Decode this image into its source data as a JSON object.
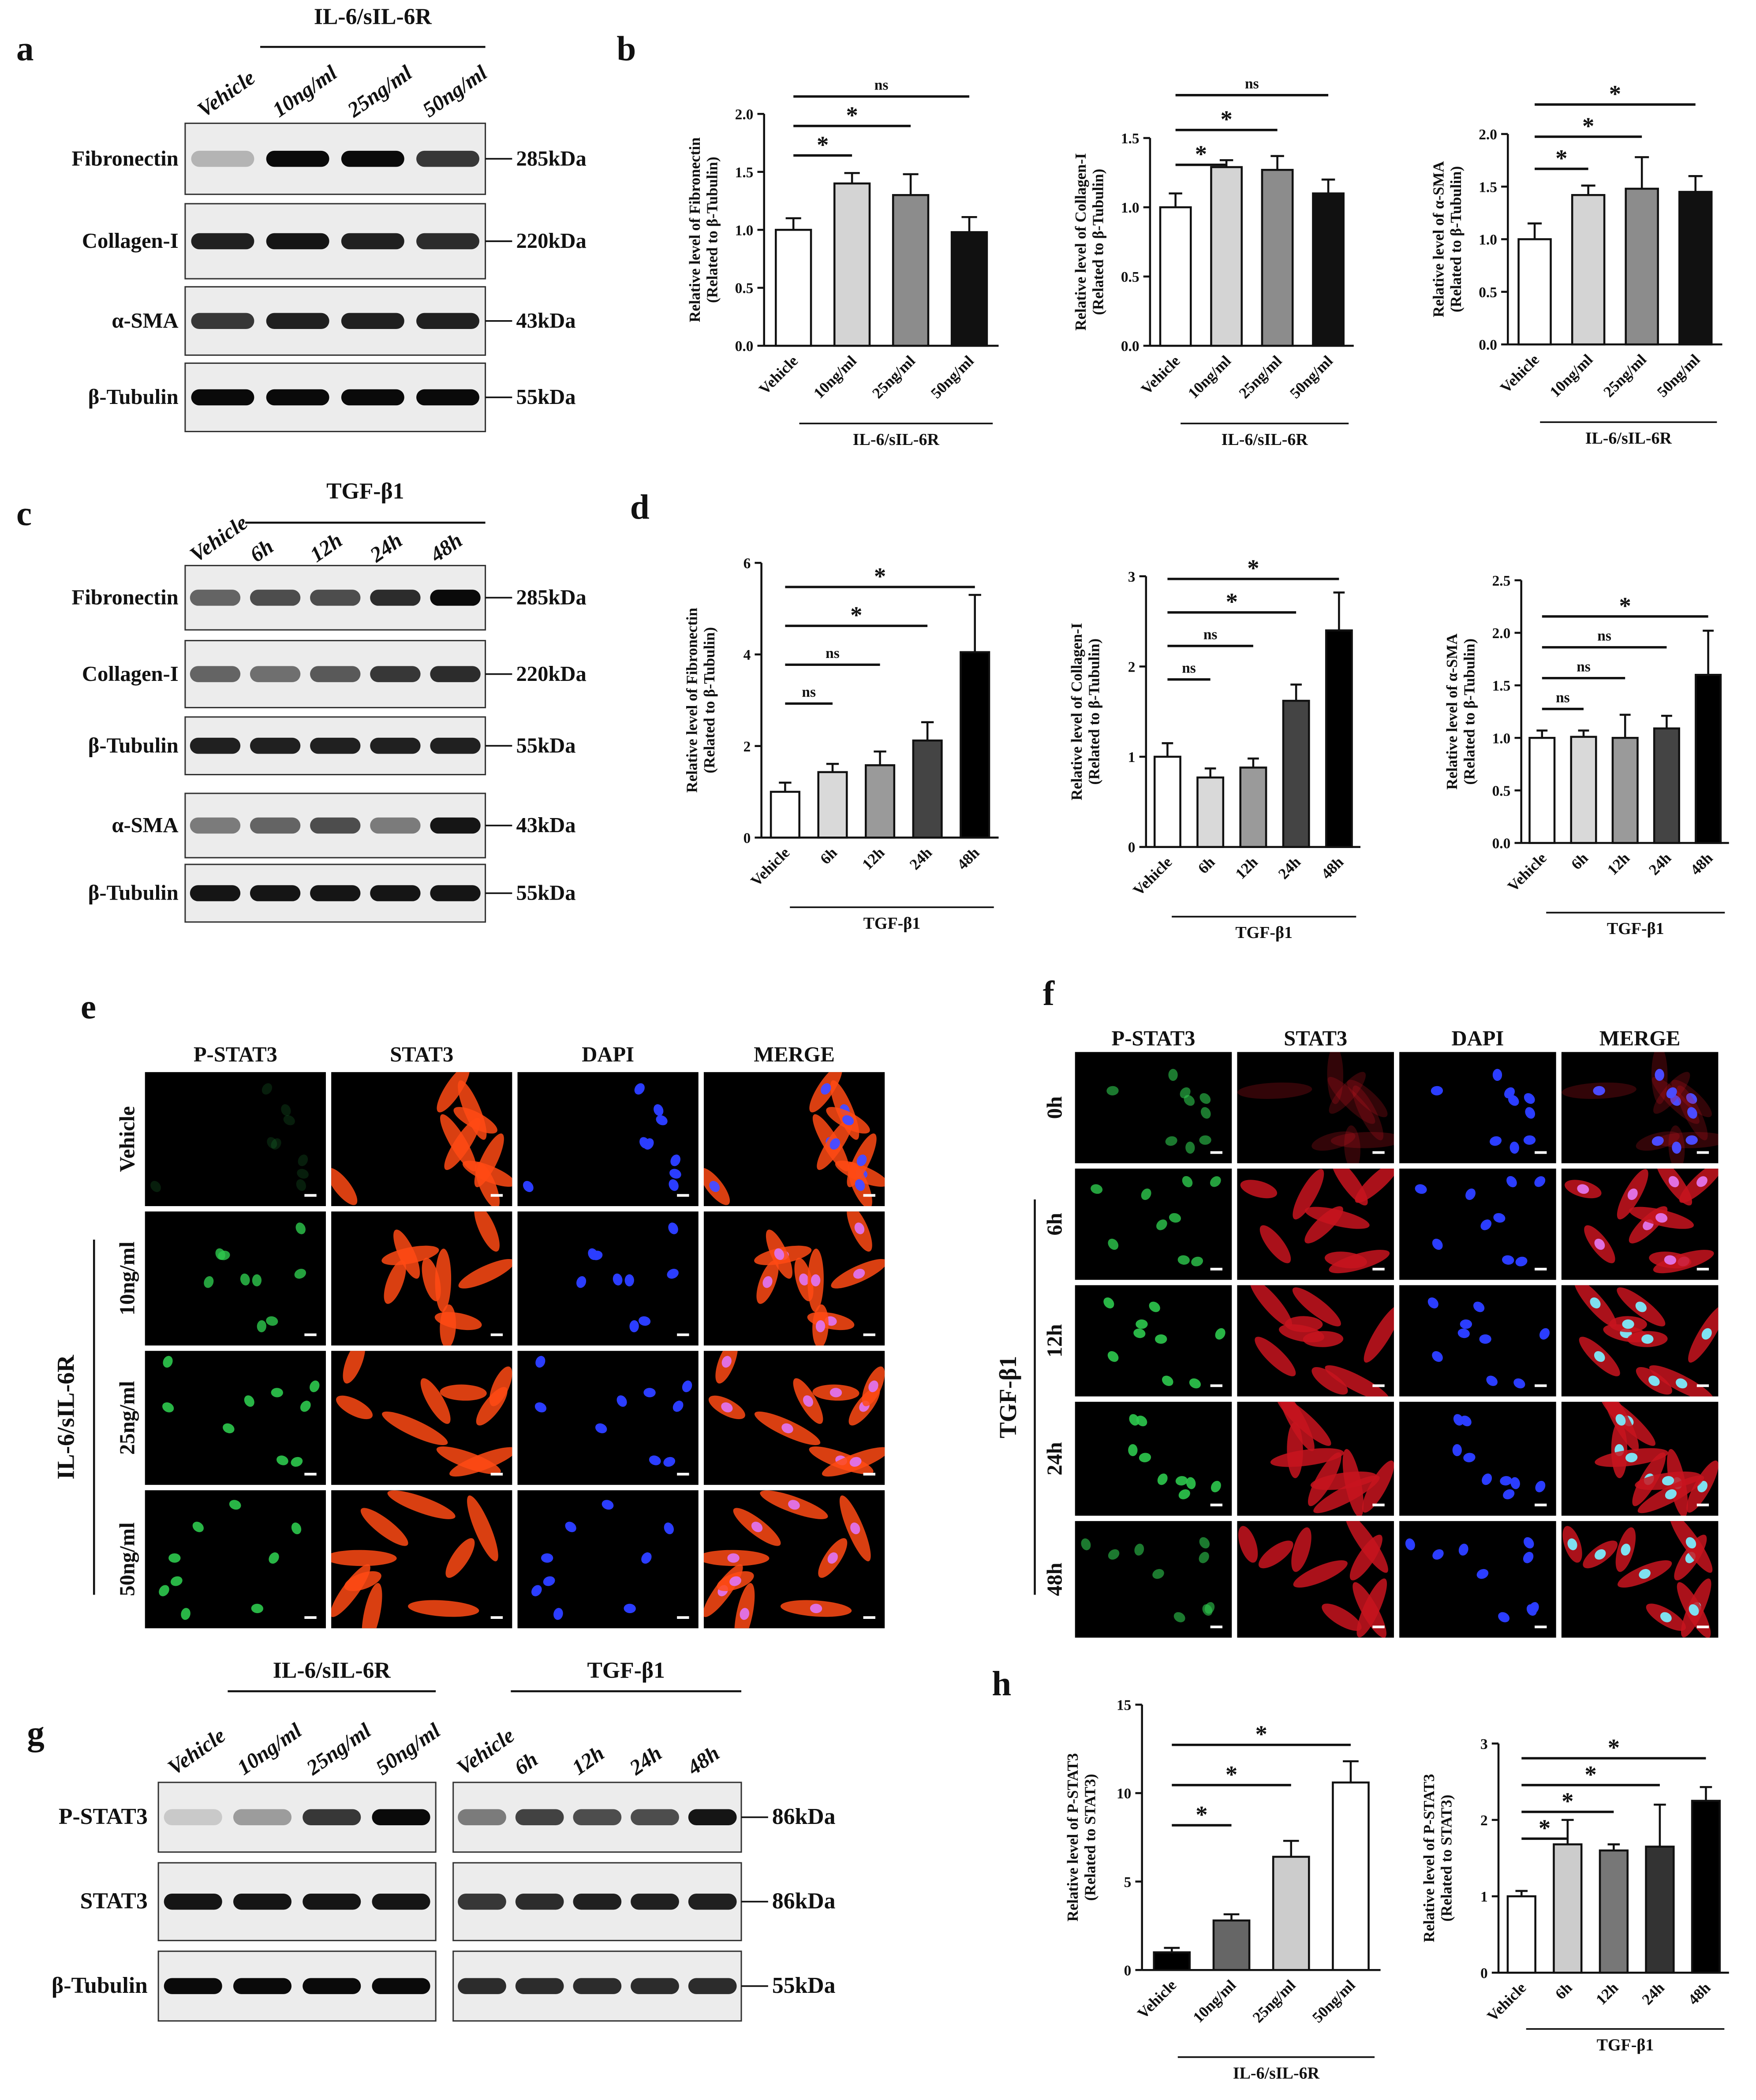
{
  "panel_labels": [
    "a",
    "b",
    "c",
    "d",
    "e",
    "f",
    "g",
    "h"
  ],
  "blots": [
    {
      "header": "IL-6/sIL-6R",
      "lanes": [
        "Vehicle",
        "10ng/ml",
        "25ng/ml",
        "50ng/ml"
      ],
      "rows": [
        {
          "protein": "Fibronectin",
          "size": "285kDa"
        },
        {
          "protein": "Collagen-I",
          "size": "220kDa"
        },
        {
          "protein": "α-SMA",
          "size": "43kDa"
        },
        {
          "protein": "β-Tubulin",
          "size": "55kDa"
        }
      ]
    },
    {
      "header": "TGF-β1",
      "lanes": [
        "Vehicle",
        "6h",
        "12h",
        "24h",
        "48h"
      ],
      "rows": [
        {
          "protein": "Fibronectin",
          "size": "285kDa"
        },
        {
          "protein": "Collagen-I",
          "size": "220kDa"
        },
        {
          "protein": "β-Tubulin",
          "size": "55kDa"
        },
        {
          "protein": "α-SMA",
          "size": "43kDa"
        },
        {
          "protein": "β-Tubulin",
          "size": "55kDa"
        }
      ]
    },
    {
      "header": "IL-6/sIL-6R",
      "lanes": [
        "Vehicle",
        "10ng/ml",
        "25ng/ml",
        "50ng/ml"
      ],
      "rows": [
        {
          "protein": "P-STAT3"
        },
        {
          "protein": "STAT3"
        },
        {
          "protein": "β-Tubulin"
        }
      ]
    },
    {
      "header": "TGF-β1",
      "lanes": [
        "Vehicle",
        "6h",
        "12h",
        "24h",
        "48h"
      ],
      "rows": [
        {
          "size": "86kDa"
        },
        {
          "size": "86kDa"
        },
        {
          "size": "55kDa"
        }
      ]
    }
  ],
  "micrographs": [
    {
      "columns": [
        "P-STAT3",
        "STAT3",
        "DAPI",
        "MERGE"
      ],
      "rows": [
        "Vehicle",
        "10ng/ml",
        "25ng/ml",
        "50ng/ml"
      ],
      "group": "IL-6/sIL-6R"
    },
    {
      "columns": [
        "P-STAT3",
        "STAT3",
        "DAPI",
        "MERGE"
      ],
      "rows": [
        "0h",
        "6h",
        "12h",
        "24h",
        "48h"
      ],
      "group": "TGF-β1"
    }
  ],
  "chart_data": [
    {
      "type": "bar",
      "y_label": [
        "Relative level of Fibronectin",
        "(Related to β-Tubulin)"
      ],
      "categories": [
        "Vehicle",
        "10ng/ml",
        "25ng/ml",
        "50ng/ml"
      ],
      "values": [
        1.0,
        1.4,
        1.3,
        0.98
      ],
      "errors": [
        0.1,
        0.09,
        0.18,
        0.13
      ],
      "colors": [
        "#ffffff",
        "#d4d4d4",
        "#8c8c8c",
        "#111111"
      ],
      "ylim": [
        0,
        2
      ],
      "yticks": [
        {
          "value": 0,
          "label": "0.0"
        },
        {
          "value": 0.5,
          "label": "0.5"
        },
        {
          "value": 1,
          "label": "1.0"
        },
        {
          "value": 1.5,
          "label": "1.5"
        },
        {
          "value": 2,
          "label": "2.0"
        }
      ],
      "group_label": "IL-6/sIL-6R",
      "brackets": [
        {
          "to": "10ng/ml",
          "label": "*"
        },
        {
          "to": "25ng/ml",
          "label": "*"
        },
        {
          "to": "50ng/ml",
          "label": "ns"
        }
      ]
    },
    {
      "type": "bar",
      "y_label": [
        "Relative level of Collagen-I",
        "(Related to β-Tubulin)"
      ],
      "categories": [
        "Vehicle",
        "10ng/ml",
        "25ng/ml",
        "50ng/ml"
      ],
      "values": [
        1.0,
        1.29,
        1.27,
        1.1
      ],
      "errors": [
        0.1,
        0.05,
        0.1,
        0.1
      ],
      "colors": [
        "#ffffff",
        "#d4d4d4",
        "#8c8c8c",
        "#111111"
      ],
      "ylim": [
        0,
        1.5
      ],
      "yticks": [
        {
          "value": 0,
          "label": "0.0"
        },
        {
          "value": 0.5,
          "label": "0.5"
        },
        {
          "value": 1,
          "label": "1.0"
        },
        {
          "value": 1.5,
          "label": "1.5"
        }
      ],
      "group_label": "IL-6/sIL-6R",
      "brackets": [
        {
          "to": "10ng/ml",
          "label": "*"
        },
        {
          "to": "25ng/ml",
          "label": "*"
        },
        {
          "to": "50ng/ml",
          "label": "ns"
        }
      ]
    },
    {
      "type": "bar",
      "y_label": [
        "Relative level of α-SMA",
        "(Related to β-Tubulin)"
      ],
      "categories": [
        "Vehicle",
        "10ng/ml",
        "25ng/ml",
        "50ng/ml"
      ],
      "values": [
        1.0,
        1.42,
        1.48,
        1.45
      ],
      "errors": [
        0.15,
        0.09,
        0.3,
        0.15
      ],
      "colors": [
        "#ffffff",
        "#d4d4d4",
        "#8c8c8c",
        "#111111"
      ],
      "ylim": [
        0,
        2
      ],
      "yticks": [
        {
          "value": 0,
          "label": "0.0"
        },
        {
          "value": 0.5,
          "label": "0.5"
        },
        {
          "value": 1,
          "label": "1.0"
        },
        {
          "value": 1.5,
          "label": "1.5"
        },
        {
          "value": 2,
          "label": "2.0"
        }
      ],
      "group_label": "IL-6/sIL-6R",
      "brackets": [
        {
          "to": "10ng/ml",
          "label": "*"
        },
        {
          "to": "25ng/ml",
          "label": "*"
        },
        {
          "to": "50ng/ml",
          "label": "*"
        }
      ]
    },
    {
      "type": "bar",
      "y_label": [
        "Relative level of Fibronectin",
        "(Related to β-Tubulin)"
      ],
      "categories": [
        "Vehicle",
        "6h",
        "12h",
        "24h",
        "48h"
      ],
      "values": [
        1.0,
        1.43,
        1.58,
        2.12,
        4.05
      ],
      "errors": [
        0.2,
        0.18,
        0.3,
        0.4,
        1.25
      ],
      "colors": [
        "#ffffff",
        "#d9d9d9",
        "#9a9a9a",
        "#444444",
        "#000000"
      ],
      "ylim": [
        0,
        6
      ],
      "yticks": [
        0,
        2,
        4,
        6
      ],
      "group_label": "TGF-β1",
      "brackets": [
        {
          "to": "6h",
          "label": "ns"
        },
        {
          "to": "12h",
          "label": "ns"
        },
        {
          "to": "24h",
          "label": "*"
        },
        {
          "to": "48h",
          "label": "*"
        }
      ]
    },
    {
      "type": "bar",
      "y_label": [
        "Relative level of Collagen-I",
        "(Related to β-Tubulin)"
      ],
      "categories": [
        "Vehicle",
        "6h",
        "12h",
        "24h",
        "48h"
      ],
      "values": [
        1.0,
        0.77,
        0.88,
        1.62,
        2.4
      ],
      "errors": [
        0.15,
        0.1,
        0.1,
        0.18,
        0.42
      ],
      "colors": [
        "#ffffff",
        "#d9d9d9",
        "#9a9a9a",
        "#444444",
        "#000000"
      ],
      "ylim": [
        0,
        3
      ],
      "yticks": [
        0,
        1,
        2,
        3
      ],
      "group_label": "TGF-β1",
      "brackets": [
        {
          "to": "6h",
          "label": "ns"
        },
        {
          "to": "12h",
          "label": "ns"
        },
        {
          "to": "24h",
          "label": "*"
        },
        {
          "to": "48h",
          "label": "*"
        }
      ]
    },
    {
      "type": "bar",
      "y_label": [
        "Relative level of α-SMA",
        "(Related to β-Tubulin)"
      ],
      "categories": [
        "Vehicle",
        "6h",
        "12h",
        "24h",
        "48h"
      ],
      "values": [
        1.0,
        1.01,
        1.0,
        1.09,
        1.6
      ],
      "errors": [
        0.07,
        0.06,
        0.22,
        0.12,
        0.42
      ],
      "colors": [
        "#ffffff",
        "#d9d9d9",
        "#9a9a9a",
        "#444444",
        "#000000"
      ],
      "ylim": [
        0,
        2.5
      ],
      "yticks": [
        {
          "value": 0,
          "label": "0.0"
        },
        {
          "value": 0.5,
          "label": "0.5"
        },
        {
          "value": 1,
          "label": "1.0"
        },
        {
          "value": 1.5,
          "label": "1.5"
        },
        {
          "value": 2,
          "label": "2.0"
        },
        {
          "value": 2.5,
          "label": "2.5"
        }
      ],
      "group_label": "TGF-β1",
      "brackets": [
        {
          "to": "6h",
          "label": "ns"
        },
        {
          "to": "12h",
          "label": "ns"
        },
        {
          "to": "24h",
          "label": "ns"
        },
        {
          "to": "48h",
          "label": "*"
        }
      ]
    },
    {
      "type": "bar",
      "y_label": [
        "Relative level of P-STAT3",
        "(Related to STAT3)"
      ],
      "categories": [
        "Vehicle",
        "10ng/ml",
        "25ng/ml",
        "50ng/ml"
      ],
      "values": [
        1.0,
        2.8,
        6.4,
        10.6
      ],
      "errors": [
        0.25,
        0.35,
        0.9,
        1.2
      ],
      "colors": [
        "#000000",
        "#666666",
        "#cccccc",
        "#ffffff"
      ],
      "ylim": [
        0,
        15
      ],
      "yticks": [
        0,
        5,
        10,
        15
      ],
      "group_label": "IL-6/sIL-6R",
      "brackets": [
        {
          "to": "10ng/ml",
          "label": "*"
        },
        {
          "to": "25ng/ml",
          "label": "*"
        },
        {
          "to": "50ng/ml",
          "label": "*"
        }
      ]
    },
    {
      "type": "bar",
      "y_label": [
        "Relative level of P-STAT3",
        "(Related to STAT3)"
      ],
      "categories": [
        "Vehicle",
        "6h",
        "12h",
        "24h",
        "48h"
      ],
      "values": [
        1.0,
        1.68,
        1.6,
        1.65,
        2.25
      ],
      "errors": [
        0.07,
        0.32,
        0.08,
        0.55,
        0.18
      ],
      "colors": [
        "#ffffff",
        "#cccccc",
        "#777777",
        "#333333",
        "#000000"
      ],
      "ylim": [
        0,
        3
      ],
      "yticks": [
        0,
        1,
        2,
        3
      ],
      "group_label": "TGF-β1",
      "brackets": [
        {
          "to": "6h",
          "label": "*"
        },
        {
          "to": "12h",
          "label": "*"
        },
        {
          "to": "24h",
          "label": "*"
        },
        {
          "to": "48h",
          "label": "*"
        }
      ]
    }
  ]
}
